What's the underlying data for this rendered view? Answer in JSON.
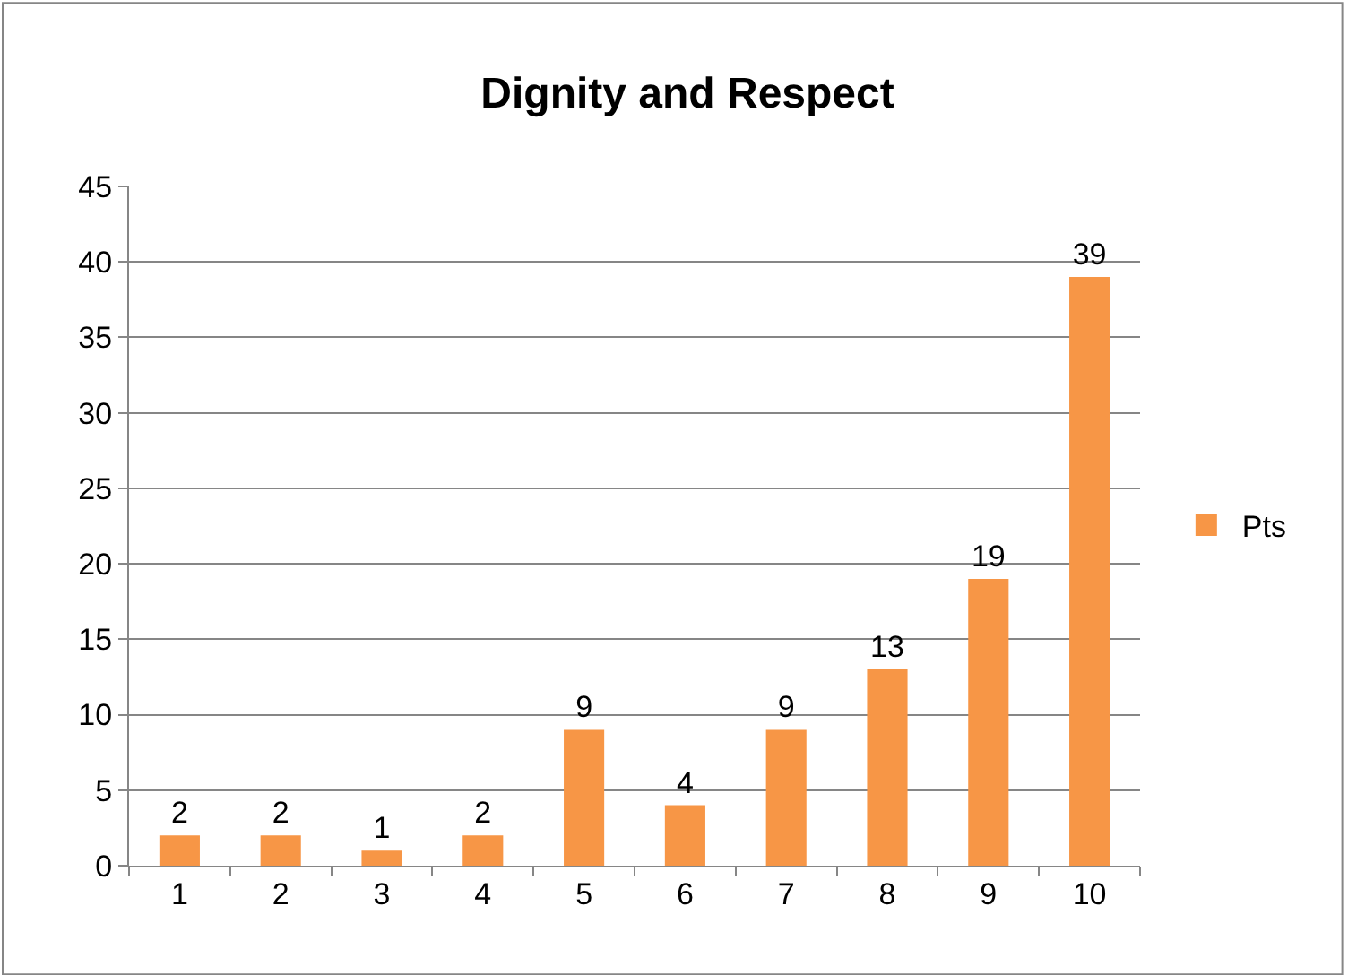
{
  "chart_data": {
    "type": "bar",
    "title": "Dignity and Respect",
    "categories": [
      "1",
      "2",
      "3",
      "4",
      "5",
      "6",
      "7",
      "8",
      "9",
      "10"
    ],
    "series": [
      {
        "name": "Pts",
        "color": "#f79646",
        "values": [
          2,
          2,
          1,
          2,
          9,
          4,
          9,
          13,
          19,
          39
        ]
      }
    ],
    "ylim": [
      0,
      45
    ],
    "yticks": [
      0,
      5,
      10,
      15,
      20,
      25,
      30,
      35,
      40,
      45
    ],
    "grid": "y",
    "legend": "right",
    "data_labels": true
  }
}
